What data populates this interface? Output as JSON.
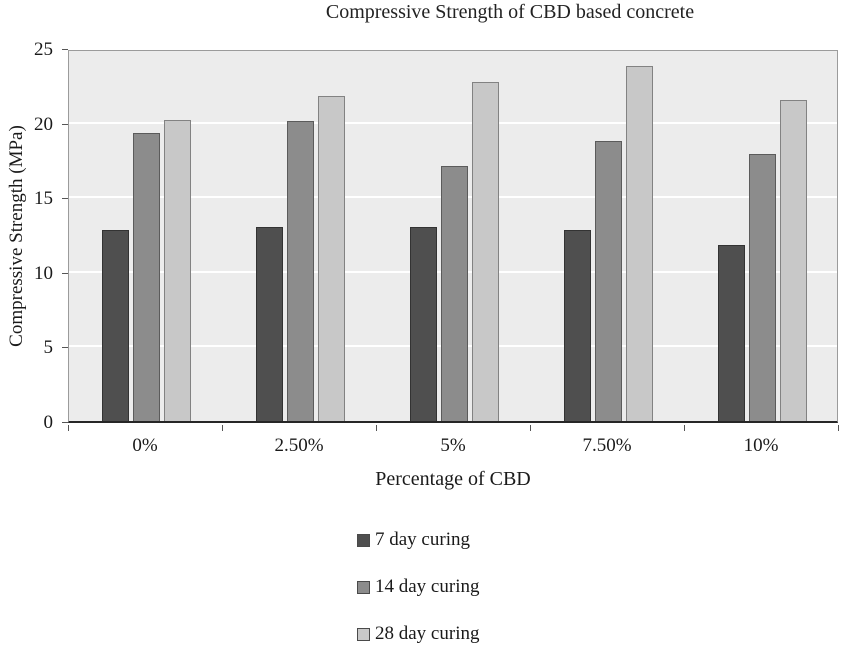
{
  "page": {
    "background": "#ffffff"
  },
  "chart_data": {
    "type": "bar",
    "title": "Compressive Strength of CBD based concrete",
    "xlabel": "Percentage of CBD",
    "ylabel": "Compressive Strength (MPa)",
    "ylim": [
      0,
      25
    ],
    "yticks": [
      0,
      5,
      10,
      15,
      20,
      25
    ],
    "grid": true,
    "legend_position": "bottom",
    "plot_background": "#ececec",
    "gridline_color": "#ffffff",
    "categories": [
      "0%",
      "2.50%",
      "5%",
      "7.50%",
      "10%"
    ],
    "series": [
      {
        "name": "7 day curing",
        "color": "#4f4f4f",
        "values": [
          12.8,
          13.0,
          13.0,
          12.8,
          11.8
        ]
      },
      {
        "name": "14 day curing",
        "color": "#8c8c8c",
        "values": [
          19.3,
          20.1,
          17.1,
          18.8,
          17.9
        ]
      },
      {
        "name": "28 day curing",
        "color": "#c8c8c8",
        "values": [
          20.2,
          21.8,
          22.7,
          23.8,
          21.5
        ]
      }
    ]
  }
}
